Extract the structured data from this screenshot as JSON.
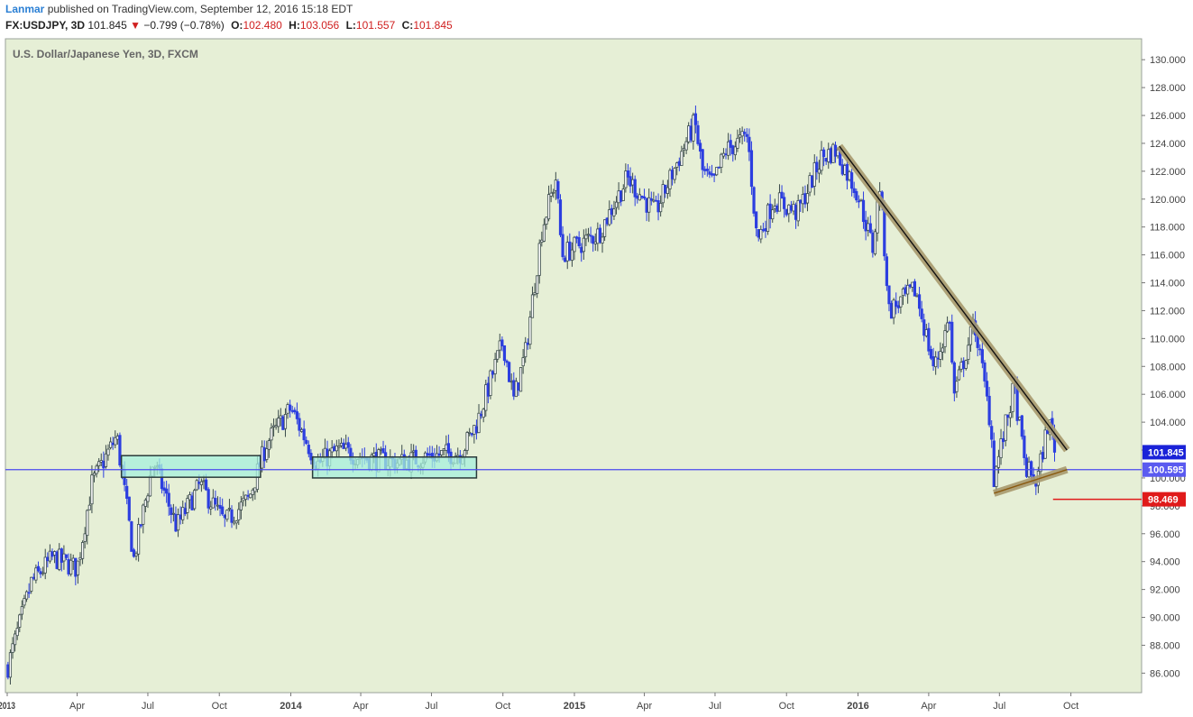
{
  "header": {
    "author": "Lanmar",
    "published_text": "published on TradingView.com, September 12, 2016 15:18 EDT",
    "symbol_label": "FX:USDJPY, 3D",
    "last_price": "101.845",
    "change_arrow": "▼",
    "change": "−0.799 (−0.78%)",
    "o_label": "O:",
    "o_value": "102.480",
    "h_label": "H:",
    "h_value": "103.056",
    "l_label": "L:",
    "l_value": "101.557",
    "c_label": "C:",
    "c_value": "101.845"
  },
  "colors": {
    "background": "#e6efd6",
    "up_candle": "#3a4a4a",
    "down_candle": "#2c3ee0",
    "support_line": "#4a4aee",
    "box_fill": "#a6f0dc",
    "box_border": "#2a3a3a",
    "trendline_shadow": "#a89a6e",
    "trendline": "#111111",
    "target_line": "#e01a1a"
  },
  "chart_data": {
    "type": "candlestick",
    "title": "U.S. Dollar/Japanese Yen, 3D, FXCM",
    "ylim": [
      84.6,
      131.5
    ],
    "y_ticks": [
      "86.000",
      "88.000",
      "90.000",
      "92.000",
      "94.000",
      "96.000",
      "98.000",
      "100.000",
      "102.000",
      "104.000",
      "106.000",
      "108.000",
      "110.000",
      "112.000",
      "114.000",
      "116.000",
      "118.000",
      "120.000",
      "122.000",
      "124.000",
      "126.000",
      "128.000",
      "130.000"
    ],
    "x_ticks": [
      "2013-01",
      "2013-04",
      "2013-07",
      "2013-10",
      "2014-01",
      "2014-04",
      "2014-07",
      "2014-10",
      "2015-01",
      "2015-04",
      "2015-07",
      "2015-10",
      "2016-01",
      "2016-04",
      "2016-07",
      "2016-10"
    ],
    "x_tick_labels": [
      "2013",
      "Apr",
      "Jul",
      "Oct",
      "2014",
      "Apr",
      "Jul",
      "Oct",
      "2015",
      "Apr",
      "Jul",
      "Oct",
      "2016",
      "Apr",
      "Jul",
      "Oct"
    ],
    "x_range": [
      "2013-01-01",
      "2016-12-31"
    ],
    "price_path": [
      [
        "2013-01-02",
        86.5
      ],
      [
        "2013-02-01",
        92.5
      ],
      [
        "2013-03-01",
        94.3
      ],
      [
        "2013-04-01",
        93.5
      ],
      [
        "2013-04-20",
        99.6
      ],
      [
        "2013-05-22",
        103.0
      ],
      [
        "2013-06-13",
        94.2
      ],
      [
        "2013-07-08",
        101.2
      ],
      [
        "2013-08-07",
        96.5
      ],
      [
        "2013-09-06",
        99.5
      ],
      [
        "2013-10-08",
        96.8
      ],
      [
        "2013-11-08",
        98.5
      ],
      [
        "2013-12-01",
        102.5
      ],
      [
        "2014-01-01",
        105.0
      ],
      [
        "2014-02-04",
        101.0
      ],
      [
        "2014-03-03",
        102.0
      ],
      [
        "2014-04-11",
        101.4
      ],
      [
        "2014-05-21",
        101.1
      ],
      [
        "2014-07-01",
        101.6
      ],
      [
        "2014-08-08",
        101.8
      ],
      [
        "2014-08-29",
        104.0
      ],
      [
        "2014-10-01",
        109.8
      ],
      [
        "2014-10-15",
        105.6
      ],
      [
        "2014-10-30",
        109.0
      ],
      [
        "2014-11-20",
        117.8
      ],
      [
        "2014-12-08",
        121.5
      ],
      [
        "2014-12-16",
        116.0
      ],
      [
        "2015-01-15",
        117.0
      ],
      [
        "2015-02-01",
        117.5
      ],
      [
        "2015-03-10",
        121.5
      ],
      [
        "2015-04-15",
        119.0
      ],
      [
        "2015-05-20",
        123.5
      ],
      [
        "2015-06-05",
        125.5
      ],
      [
        "2015-06-15",
        122.0
      ],
      [
        "2015-06-28",
        121.0
      ],
      [
        "2015-07-15",
        123.5
      ],
      [
        "2015-08-12",
        124.5
      ],
      [
        "2015-08-24",
        117.0
      ],
      [
        "2015-09-15",
        120.0
      ],
      [
        "2015-10-15",
        119.0
      ],
      [
        "2015-11-15",
        123.0
      ],
      [
        "2015-12-03",
        123.5
      ],
      [
        "2015-12-31",
        120.5
      ],
      [
        "2016-01-20",
        116.5
      ],
      [
        "2016-01-29",
        121.0
      ],
      [
        "2016-02-10",
        112.0
      ],
      [
        "2016-03-15",
        113.5
      ],
      [
        "2016-04-08",
        107.8
      ],
      [
        "2016-04-28",
        111.5
      ],
      [
        "2016-05-03",
        105.8
      ],
      [
        "2016-05-30",
        111.2
      ],
      [
        "2016-06-20",
        103.8
      ],
      [
        "2016-06-24",
        100.0
      ],
      [
        "2016-07-20",
        106.5
      ],
      [
        "2016-08-03",
        100.8
      ],
      [
        "2016-08-18",
        99.6
      ],
      [
        "2016-09-02",
        104.1
      ],
      [
        "2016-09-12",
        101.845
      ]
    ],
    "price_range": [
      85.8,
      125.8
    ],
    "annotations": {
      "support_level": 100.595,
      "target_level": 98.469,
      "current_level": 101.845,
      "boxes": [
        {
          "from": "2013-05-28",
          "to": "2013-11-23",
          "low": 100.05,
          "high": 101.6
        },
        {
          "from": "2014-01-29",
          "to": "2014-08-28",
          "low": 100.0,
          "high": 101.5
        }
      ],
      "resistance_trendline": [
        [
          "2015-12-08",
          123.8
        ],
        [
          "2016-09-26",
          102.0
        ]
      ],
      "support_trendline": [
        [
          "2016-06-24",
          98.9
        ],
        [
          "2016-09-26",
          100.6
        ]
      ],
      "target_line": {
        "from": "2016-09-08",
        "to": "2016-12-31",
        "level": 98.469
      }
    },
    "price_labels": {
      "current": "101.845",
      "support": "100.595",
      "target": "98.469"
    }
  }
}
